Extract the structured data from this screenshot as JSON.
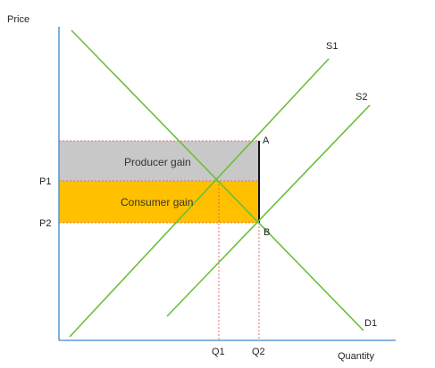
{
  "axes": {
    "y_label": "Price",
    "x_label": "Quantity"
  },
  "ticks": {
    "p1": "P1",
    "p2": "P2",
    "q1": "Q1",
    "q2": "Q2"
  },
  "curves": {
    "s1": "S1",
    "s2": "S2",
    "d1": "D1"
  },
  "points": {
    "a": "A",
    "b": "B"
  },
  "regions": {
    "producer_gain": "Producer gain",
    "consumer_gain": "Consumer gain"
  },
  "colors": {
    "axis": "#5b9bd5",
    "curve": "#6abf3b",
    "producer_fill": "#c8c8c8",
    "consumer_fill": "#ffc000",
    "guide": "#e05050",
    "segment": "#111111"
  }
}
